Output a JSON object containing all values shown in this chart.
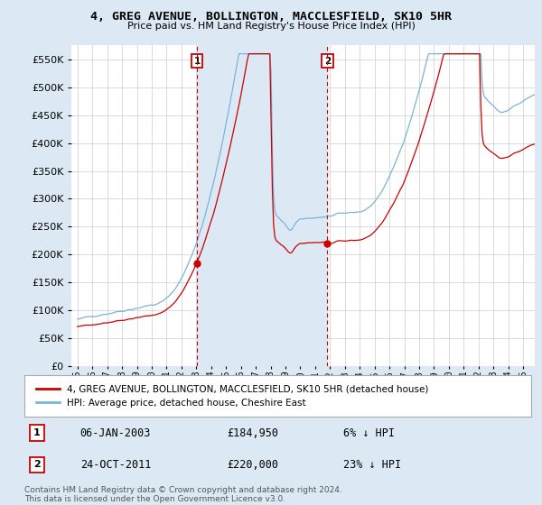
{
  "title": "4, GREG AVENUE, BOLLINGTON, MACCLESFIELD, SK10 5HR",
  "subtitle": "Price paid vs. HM Land Registry's House Price Index (HPI)",
  "ylim": [
    0,
    575000
  ],
  "yticks": [
    0,
    50000,
    100000,
    150000,
    200000,
    250000,
    300000,
    350000,
    400000,
    450000,
    500000,
    550000
  ],
  "bg_color": "#dce9f5",
  "plot_bg": "#ffffff",
  "shade_color": "#dce9f5",
  "hpi_color": "#7ab4d8",
  "price_color": "#cc0000",
  "marker1_x": 2003.04,
  "marker1_value": 184950,
  "marker2_x": 2011.82,
  "marker2_value": 220000,
  "legend_entry1": "4, GREG AVENUE, BOLLINGTON, MACCLESFIELD, SK10 5HR (detached house)",
  "legend_entry2": "HPI: Average price, detached house, Cheshire East",
  "note1_num": "1",
  "note1_date": "06-JAN-2003",
  "note1_price": "£184,950",
  "note1_hpi": "6% ↓ HPI",
  "note2_num": "2",
  "note2_date": "24-OCT-2011",
  "note2_price": "£220,000",
  "note2_hpi": "23% ↓ HPI",
  "footer": "Contains HM Land Registry data © Crown copyright and database right 2024.\nThis data is licensed under the Open Government Licence v3.0."
}
